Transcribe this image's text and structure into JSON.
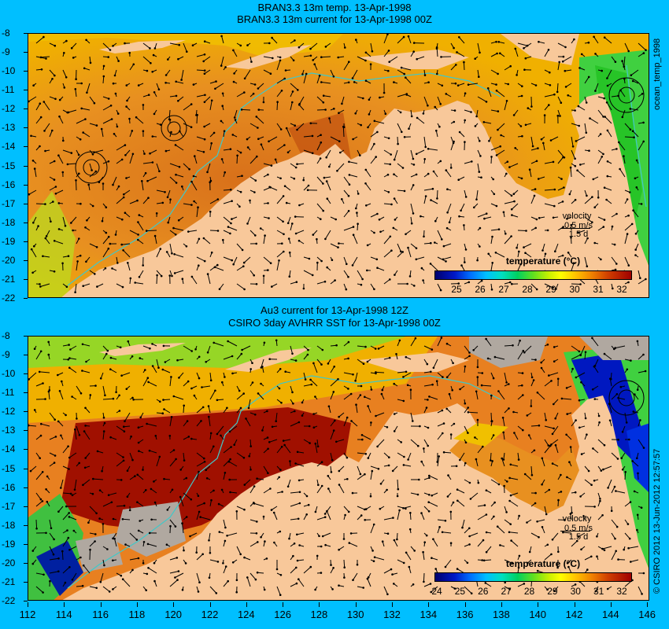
{
  "top_panel": {
    "title_line1": "BRAN3.3 13m temp. 13-Apr-1998",
    "title_line2": "BRAN3.3 13m current for 13-Apr-1998 00Z",
    "side_label": "ocean_temp_1998",
    "velocity_label": "velocity",
    "velocity_scale": "0.5 m/s",
    "velocity_time": "1.5 d",
    "colorbar_title": "temperature (°C)",
    "colorbar_labels": [
      "25",
      "26",
      "27",
      "28",
      "29",
      "30",
      "31",
      "32"
    ]
  },
  "bottom_panel": {
    "title_line1": "Au3 current for 13-Apr-1998 12Z",
    "title_line2": "CSIRO 3day AVHRR SST for 13-Apr-1998 00Z",
    "side_label": "© CSIRO 2012   13-Jun-2012 12:57:57",
    "velocity_label": "velocity",
    "velocity_scale": "0.5 m/s",
    "velocity_time": "1.5 d",
    "colorbar_title": "temperature (°C)",
    "colorbar_labels": [
      "24",
      "25",
      "26",
      "27",
      "28",
      "29",
      "30",
      "31",
      "32"
    ]
  },
  "y_axis_labels": [
    "-8",
    "-9",
    "-10",
    "-11",
    "-12",
    "-13",
    "-14",
    "-15",
    "-16",
    "-17",
    "-18",
    "-19",
    "-20",
    "-21",
    "-22"
  ],
  "x_axis_labels": [
    "112",
    "114",
    "116",
    "118",
    "120",
    "122",
    "124",
    "126",
    "128",
    "130",
    "132",
    "134",
    "136",
    "138",
    "140",
    "142",
    "144",
    "146"
  ],
  "colors": {
    "background": "#00bfff",
    "land": "#f8c89a",
    "warm_sst": "#d06010",
    "hot_sst": "#a01000",
    "cool_sst": "#60e020",
    "cloud_mask": "#b0a8a0",
    "isobath": "#40c8c8"
  },
  "icons": [
    "current-vector-icon"
  ]
}
